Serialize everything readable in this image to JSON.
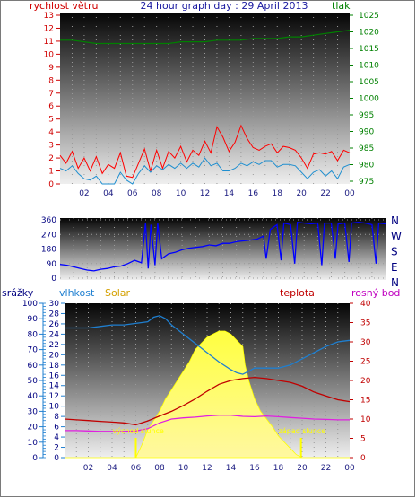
{
  "chart_data": [
    {
      "type": "line",
      "title": "24 hour graph day : 29 April 2013",
      "left_axis_label": "rychlost větru",
      "right_axis_label": "tlak",
      "x_ticks": [
        "02",
        "04",
        "06",
        "08",
        "10",
        "12",
        "14",
        "16",
        "18",
        "20",
        "22",
        "00"
      ],
      "xlim": [
        0,
        24
      ],
      "left_ylim": [
        0,
        13
      ],
      "right_ylim": [
        975,
        1025
      ],
      "left_ticks": [
        0,
        1,
        2,
        3,
        4,
        5,
        6,
        7,
        8,
        9,
        10,
        11,
        12,
        13
      ],
      "right_ticks": [
        975,
        980,
        985,
        990,
        995,
        1000,
        1005,
        1010,
        1015,
        1020,
        1025
      ],
      "colors": {
        "gust": "#ff0000",
        "wind": "#1f8fd0",
        "pressure": "#008000",
        "left_axis": "#d00000",
        "right_axis": "#008000",
        "title": "#1a1aa0"
      },
      "series": [
        {
          "key": "gust",
          "color": "#ff0000",
          "x": [
            0,
            0.5,
            1,
            1.5,
            2,
            2.5,
            3,
            3.5,
            4,
            4.5,
            5,
            5.5,
            6,
            6.5,
            7,
            7.5,
            8,
            8.5,
            9,
            9.5,
            10,
            10.5,
            11,
            11.5,
            12,
            12.5,
            13,
            13.5,
            14,
            14.5,
            15,
            15.5,
            16,
            16.5,
            17,
            17.5,
            18,
            18.5,
            19,
            19.5,
            20,
            20.5,
            21,
            21.5,
            22,
            22.5,
            23,
            23.5,
            24
          ],
          "y": [
            2.2,
            1.6,
            2.5,
            1.2,
            2.0,
            1.0,
            2.1,
            0.8,
            1.5,
            1.2,
            2.4,
            0.6,
            0.5,
            1.6,
            2.7,
            1.0,
            2.6,
            1.2,
            2.5,
            2.0,
            2.9,
            1.7,
            2.6,
            2.2,
            3.3,
            2.4,
            4.4,
            3.6,
            2.5,
            3.2,
            4.5,
            3.5,
            2.8,
            2.6,
            2.9,
            3.1,
            2.4,
            2.9,
            2.8,
            2.6,
            2.0,
            1.2,
            2.3,
            2.4,
            2.3,
            2.5,
            1.8,
            2.6,
            2.4
          ]
        },
        {
          "key": "wind",
          "color": "#1f8fd0",
          "x": [
            0,
            0.5,
            1,
            1.5,
            2,
            2.5,
            3,
            3.5,
            4,
            4.5,
            5,
            5.5,
            6,
            6.5,
            7,
            7.5,
            8,
            8.5,
            9,
            9.5,
            10,
            10.5,
            11,
            11.5,
            12,
            12.5,
            13,
            13.5,
            14,
            14.5,
            15,
            15.5,
            16,
            16.5,
            17,
            17.5,
            18,
            18.5,
            19,
            19.5,
            20,
            20.5,
            21,
            21.5,
            22,
            22.5,
            23,
            23.5,
            24
          ],
          "y": [
            1.2,
            1.0,
            1.4,
            0.8,
            0.4,
            0.3,
            0.6,
            0.0,
            0.0,
            0.0,
            0.9,
            0.3,
            0.0,
            0.8,
            1.4,
            0.9,
            1.4,
            1.1,
            1.5,
            1.2,
            1.6,
            1.2,
            1.6,
            1.3,
            2.0,
            1.4,
            1.6,
            1.0,
            1.0,
            1.2,
            1.6,
            1.4,
            1.7,
            1.5,
            1.8,
            1.8,
            1.3,
            1.5,
            1.5,
            1.4,
            0.9,
            0.4,
            0.9,
            1.1,
            0.6,
            1.0,
            0.4,
            1.3,
            1.5
          ]
        },
        {
          "key": "pressure",
          "color": "#008000",
          "x": [
            0,
            1,
            2,
            3,
            4,
            5,
            6,
            7,
            8,
            9,
            10,
            11,
            12,
            13,
            14,
            15,
            16,
            17,
            18,
            19,
            20,
            21,
            22,
            23,
            24
          ],
          "y": [
            1017.5,
            1017.5,
            1017.0,
            1016.5,
            1016.5,
            1016.5,
            1016.5,
            1016.5,
            1016.5,
            1016.5,
            1017.0,
            1017.0,
            1017.0,
            1017.5,
            1017.5,
            1017.5,
            1018.0,
            1018.0,
            1018.0,
            1018.5,
            1018.5,
            1019.0,
            1019.5,
            1020.0,
            1020.5
          ]
        }
      ]
    },
    {
      "type": "line",
      "left_ylim": [
        0,
        360
      ],
      "left_ticks": [
        0,
        90,
        180,
        270,
        360
      ],
      "compass_labels": [
        "N",
        "W",
        "S",
        "E",
        "N"
      ],
      "colors": {
        "direction": "#0000ff",
        "left_axis": "#000080"
      },
      "series": [
        {
          "key": "direction",
          "color": "#0000ff",
          "x": [
            0,
            0.5,
            1,
            1.5,
            2,
            2.5,
            3,
            3.5,
            4,
            4.5,
            5,
            5.5,
            6,
            6.3,
            6.5,
            6.7,
            7,
            7.2,
            7.5,
            8,
            8.5,
            9,
            9.5,
            10,
            10.5,
            11,
            11.5,
            12,
            12.5,
            13,
            13.5,
            14,
            14.5,
            15,
            15.2,
            15.5,
            16,
            16.3,
            16.5,
            17,
            17.3,
            17.5,
            18,
            18.5,
            19,
            19.3,
            19.5,
            20,
            20.3,
            20.5,
            21,
            21.3,
            21.5,
            22,
            22.5,
            23,
            23.3,
            23.5,
            24
          ],
          "y": [
            85,
            80,
            70,
            60,
            50,
            45,
            55,
            60,
            70,
            75,
            90,
            110,
            95,
            340,
            60,
            330,
            80,
            340,
            120,
            150,
            160,
            175,
            185,
            190,
            195,
            205,
            200,
            215,
            215,
            225,
            230,
            235,
            240,
            260,
            120,
            300,
            330,
            110,
            340,
            330,
            90,
            345,
            340,
            335,
            340,
            80,
            340,
            340,
            120,
            335,
            340,
            100,
            340,
            345,
            340,
            330,
            90,
            340,
            335
          ]
        }
      ]
    },
    {
      "type": "line",
      "axis_labels": {
        "rain": "srážky",
        "humidity": "vlhkost",
        "solar": "Solar",
        "temp": "teplota",
        "dew": "rosný bod"
      },
      "rain_ylim": [
        0,
        100
      ],
      "rain_ticks": [
        0,
        10,
        20,
        30,
        40,
        50,
        60,
        70,
        80,
        90,
        100
      ],
      "humidity_ylim": [
        0,
        30
      ],
      "humidity_ticks": [
        0,
        2,
        4,
        6,
        8,
        10,
        12,
        14,
        16,
        18,
        20,
        22,
        24,
        26,
        28,
        30
      ],
      "temp_ylim": [
        0,
        40
      ],
      "temp_ticks": [
        0,
        5,
        10,
        15,
        20,
        25,
        30,
        35,
        40
      ],
      "annotations": [
        {
          "text": "východ slunce",
          "x": 6.0
        },
        {
          "text": "západ slunce",
          "x": 19.9
        }
      ],
      "colors": {
        "humidity": "#1f7fd0",
        "temp": "#c00000",
        "dew": "#e020e0",
        "solar": "#ffff00",
        "rain": "#1f7fd0",
        "sun_marker": "#ffff00",
        "temp_axis": "#c00000",
        "dew_axis": "#c000c0",
        "humidity_axis": "#1f7fd0",
        "solar_axis": "#d4a000"
      },
      "series": [
        {
          "key": "humidity",
          "color": "#1f7fd0",
          "x": [
            0,
            1,
            2,
            3,
            4,
            5,
            6,
            7,
            7.5,
            8,
            8.5,
            9,
            10,
            11,
            12,
            13,
            14,
            14.5,
            15,
            15.5,
            16,
            17,
            18,
            19,
            20,
            21,
            22,
            23,
            24
          ],
          "y": [
            84,
            84,
            84,
            85,
            86,
            86,
            87,
            88,
            91,
            92,
            90,
            86,
            80,
            74,
            68,
            62,
            57,
            55,
            54,
            56,
            58,
            58,
            58,
            60,
            64,
            68,
            72,
            75,
            76
          ]
        },
        {
          "key": "temp",
          "color": "#c00000",
          "x": [
            0,
            1,
            2,
            3,
            4,
            5,
            6,
            7,
            8,
            9,
            10,
            11,
            12,
            13,
            14,
            15,
            16,
            17,
            18,
            19,
            20,
            21,
            22,
            23,
            24
          ],
          "y": [
            10.0,
            9.8,
            9.6,
            9.4,
            9.2,
            9.0,
            8.5,
            9.5,
            10.8,
            12.0,
            13.5,
            15.2,
            17.2,
            19.0,
            20.0,
            20.5,
            20.8,
            20.5,
            20.0,
            19.5,
            18.5,
            17.0,
            16.0,
            15.0,
            14.5
          ]
        },
        {
          "key": "dew",
          "color": "#e020e0",
          "x": [
            0,
            1,
            2,
            3,
            4,
            5,
            6,
            7,
            8,
            9,
            10,
            11,
            12,
            13,
            14,
            15,
            16,
            17,
            18,
            19,
            20,
            21,
            22,
            23,
            24
          ],
          "y": [
            7.0,
            7.0,
            6.9,
            6.8,
            6.8,
            6.8,
            6.9,
            7.5,
            9.0,
            10.0,
            10.3,
            10.5,
            10.8,
            11.0,
            11.0,
            10.7,
            10.6,
            10.8,
            10.6,
            10.4,
            10.2,
            10.0,
            9.9,
            9.8,
            9.8
          ]
        },
        {
          "key": "solar",
          "color": "#ffff00",
          "x": [
            0,
            5,
            6,
            6.5,
            7,
            7.5,
            8,
            8.5,
            9,
            9.5,
            10,
            10.5,
            11,
            11.5,
            12,
            12.5,
            13,
            13.5,
            14,
            14.5,
            15,
            15.2,
            15.5,
            16,
            16.5,
            17,
            17.5,
            18,
            18.5,
            19,
            19.5,
            20,
            24
          ],
          "y": [
            0,
            0,
            0,
            8,
            18,
            24,
            30,
            38,
            44,
            50,
            56,
            62,
            70,
            74,
            78,
            80,
            82,
            82,
            80,
            76,
            72,
            60,
            50,
            38,
            30,
            25,
            20,
            14,
            10,
            6,
            2,
            0,
            0
          ]
        }
      ]
    }
  ]
}
